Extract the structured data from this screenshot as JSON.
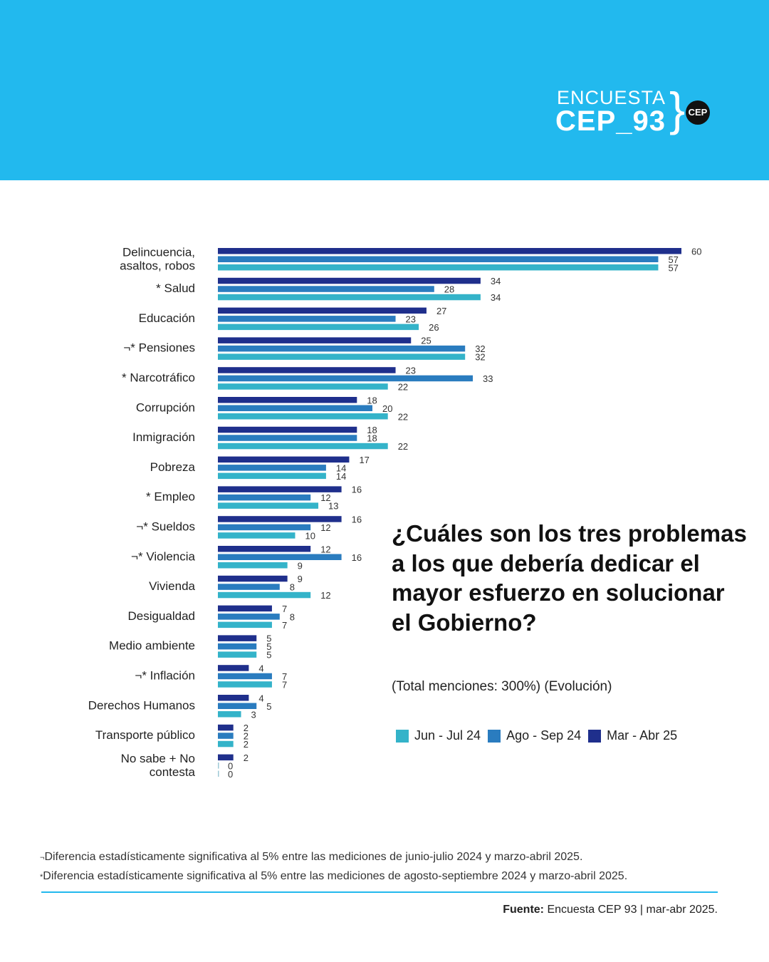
{
  "brand": {
    "line1": "ENCUESTA",
    "line2": "CEP_93",
    "logo": "CEP",
    "header_color": "#22b9ee"
  },
  "question": {
    "title": "¿Cuáles son los tres problemas a los que debería dedicar el mayor esfuerzo en solucionar el Gobierno?",
    "subtitle": "(Total menciones: 300%) (Evolución)"
  },
  "chart_data": {
    "type": "bar",
    "orientation": "horizontal",
    "categories": [
      "Delincuencia, asaltos, robos",
      "Salud",
      "Educación",
      "Pensiones",
      "Narcotráfico",
      "Corrupción",
      "Inmigración",
      "Pobreza",
      "Empleo",
      "Sueldos",
      "Violencia",
      "Vivienda",
      "Desigualdad",
      "Medio ambiente",
      "Inflación",
      "Derechos Humanos",
      "Transporte público",
      "No sabe + No contesta"
    ],
    "category_marks": [
      "",
      "*",
      "",
      "¬*",
      "*",
      "",
      "",
      "",
      "*",
      "¬*",
      "¬*",
      "",
      "",
      "",
      "¬*",
      "",
      "",
      ""
    ],
    "series_order_in_group": [
      "Mar - Abr 25",
      "Ago - Sep 24",
      "Jun - Jul 24"
    ],
    "series": [
      {
        "name": "Jun - Jul 24",
        "color": "#34b3c9",
        "values": [
          57,
          34,
          26,
          32,
          22,
          22,
          22,
          14,
          13,
          10,
          9,
          12,
          7,
          5,
          7,
          3,
          2,
          0
        ]
      },
      {
        "name": "Ago - Sep 24",
        "color": "#2a7cbf",
        "values": [
          57,
          28,
          23,
          32,
          33,
          20,
          18,
          14,
          12,
          12,
          16,
          8,
          8,
          5,
          7,
          5,
          2,
          0
        ]
      },
      {
        "name": "Mar - Abr 25",
        "color": "#1f2f8c",
        "values": [
          60,
          34,
          27,
          25,
          23,
          18,
          18,
          17,
          16,
          16,
          12,
          9,
          7,
          5,
          4,
          4,
          2,
          2
        ]
      }
    ],
    "xlim": [
      0,
      60
    ],
    "grid": false,
    "legend_position": "bottom-right"
  },
  "footnotes": {
    "mark1": "¬",
    "note1": "Diferencia estadísticamente significativa al 5% entre las mediciones de junio-julio 2024 y marzo-abril 2025.",
    "mark2": "*",
    "note2": "Diferencia estadísticamente significativa al 5% entre las mediciones de agosto-septiembre 2024 y marzo-abril 2025."
  },
  "source": {
    "label": "Fuente:",
    "text": "Encuesta CEP 93 | mar-abr 2025."
  }
}
